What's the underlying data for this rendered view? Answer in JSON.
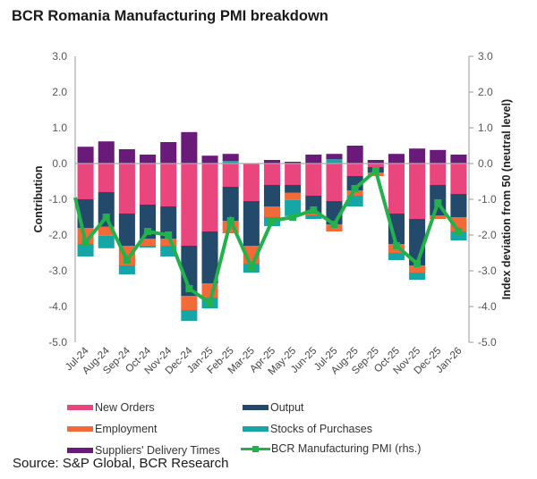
{
  "chart_data": {
    "type": "bar",
    "subtype": "stacked-bar-with-line",
    "title": "BCR Romania Manufacturing PMI breakdown",
    "categories": [
      "Jul-24",
      "Aug-24",
      "Sep-24",
      "Oct-24",
      "Nov-24",
      "Dec-24",
      "Jan-25",
      "Feb-25",
      "Mar-25",
      "Apr-25",
      "May-25",
      "Jun-25",
      "Jul-25",
      "Aug-25",
      "Sep-25",
      "Oct-25",
      "Nov-25",
      "Dec-25",
      "Jan-26"
    ],
    "ylabel": "Contribution",
    "y2label": "Index deviation from 50 (neutral level)",
    "ylim": [
      -5.0,
      3.0
    ],
    "y2lim": [
      -5.0,
      3.0
    ],
    "yticks": [
      "3.0",
      "2.0",
      "1.0",
      "0.0",
      "-1.0",
      "-2.0",
      "-3.0",
      "-4.0",
      "-5.0"
    ],
    "grid": false,
    "legend_position": "bottom",
    "series": [
      {
        "name": "New Orders",
        "kind": "bar",
        "color": "#e8467c",
        "values": [
          -1.0,
          -0.8,
          -1.4,
          -1.15,
          -1.2,
          -2.3,
          -1.9,
          -0.65,
          -1.05,
          -0.6,
          -0.6,
          -0.9,
          -1.05,
          -0.35,
          -0.1,
          -1.4,
          -1.55,
          -0.6,
          -0.85
        ]
      },
      {
        "name": "Output",
        "kind": "bar",
        "color": "#234a6b",
        "values": [
          -0.8,
          -0.97,
          -0.9,
          -0.95,
          -0.9,
          -1.4,
          -1.45,
          -0.95,
          -1.25,
          -0.6,
          -0.22,
          -0.5,
          -0.65,
          -0.4,
          -0.15,
          -0.85,
          -1.3,
          -0.85,
          -0.65
        ]
      },
      {
        "name": "Employment",
        "kind": "bar",
        "color": "#f26a38",
        "values": [
          -0.45,
          -0.25,
          -0.55,
          -0.2,
          -0.2,
          -0.4,
          -0.4,
          -0.35,
          -0.5,
          -0.3,
          -0.2,
          -0.05,
          -0.2,
          -0.15,
          -0.1,
          -0.25,
          -0.2,
          -0.1,
          -0.4
        ]
      },
      {
        "name": "Stocks of Purchases",
        "kind": "bar",
        "color": "#17a6a8",
        "values": [
          -0.35,
          -0.35,
          -0.25,
          -0.05,
          -0.3,
          -0.3,
          -0.3,
          0.07,
          -0.25,
          -0.25,
          -0.45,
          -0.1,
          0.12,
          -0.3,
          0.0,
          -0.2,
          -0.2,
          0.0,
          -0.25
        ]
      },
      {
        "name": "Suppliers' Delivery Times",
        "kind": "bar",
        "color": "#6a1b7a",
        "values": [
          0.47,
          0.62,
          0.4,
          0.25,
          0.6,
          0.88,
          0.22,
          0.2,
          0.0,
          0.1,
          0.05,
          0.25,
          0.15,
          0.5,
          0.1,
          0.27,
          0.42,
          0.38,
          0.25
        ]
      },
      {
        "name": "BCR Manufacturing PMI (rhs.)",
        "kind": "line",
        "color": "#22b14c",
        "start_value": -0.95,
        "values": [
          -2.2,
          -1.5,
          -2.7,
          -1.9,
          -2.0,
          -3.5,
          -3.9,
          -1.6,
          -2.9,
          -1.6,
          -1.5,
          -1.3,
          -1.7,
          -0.7,
          -0.2,
          -2.3,
          -2.8,
          -1.1,
          -1.9
        ]
      }
    ]
  },
  "legend": {
    "new_orders": "New Orders",
    "output": "Output",
    "employment": "Employment",
    "stocks": "Stocks of Purchases",
    "suppliers": "Suppliers' Delivery Times",
    "pmi": "BCR Manufacturing PMI (rhs.)"
  },
  "source": "Source: S&P Global, BCR Research"
}
